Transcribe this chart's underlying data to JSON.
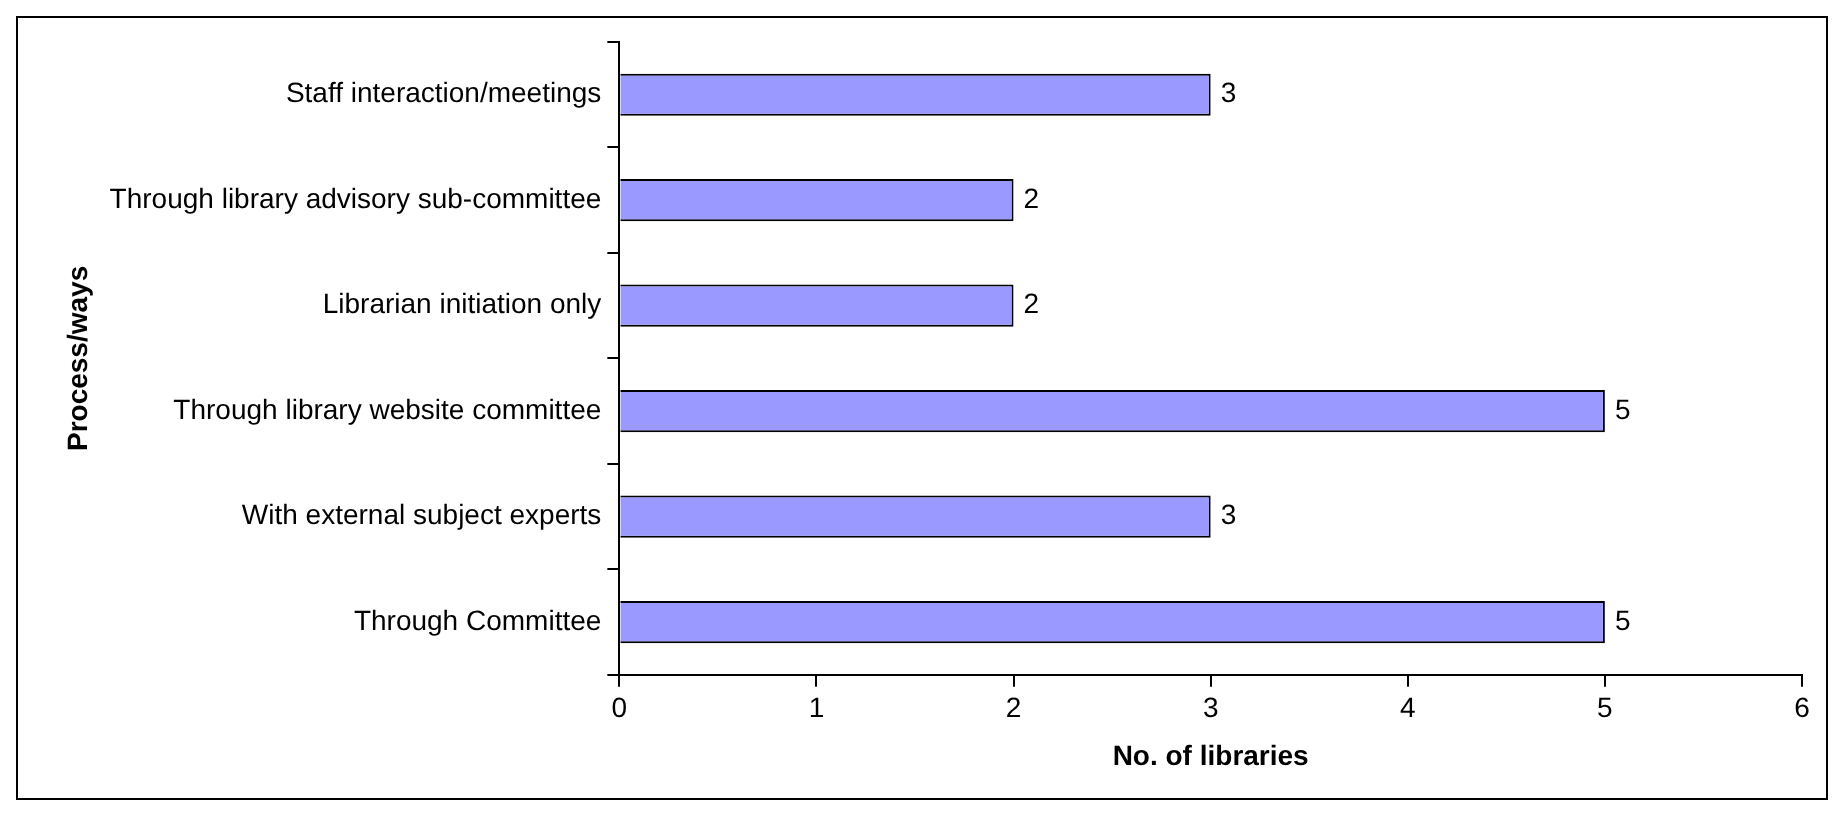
{
  "chart_data": {
    "type": "bar",
    "orientation": "horizontal",
    "xlabel": "No. of libraries",
    "ylabel": "Process/ways",
    "categories": [
      "Staff interaction/meetings",
      "Through library advisory sub-committee",
      "Librarian initiation only",
      "Through library website committee",
      "With external subject experts",
      "Through Committee"
    ],
    "values": [
      3,
      2,
      2,
      5,
      3,
      5
    ],
    "color": "#9999ff",
    "xlim": [
      0,
      6
    ],
    "xticks": [
      0,
      1,
      2,
      3,
      4,
      5,
      6
    ],
    "grid": false,
    "legend": false,
    "data_labels": true
  }
}
